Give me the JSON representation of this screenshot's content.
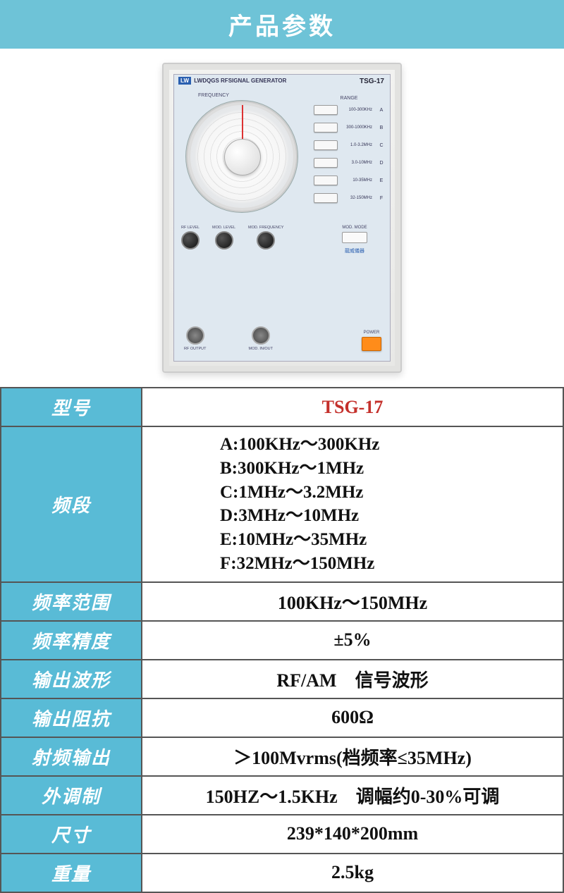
{
  "header": {
    "title": "产品参数"
  },
  "device": {
    "brand_tag": "LW",
    "brand_text": "LWDQGS",
    "title": "RFSIGNAL GENERATOR",
    "model": "TSG-17",
    "frequency_label": "FREQUENCY",
    "range_label": "RANGE",
    "ranges": [
      {
        "letter": "A",
        "text": "100-300KHz"
      },
      {
        "letter": "B",
        "text": "300-1000KHz"
      },
      {
        "letter": "C",
        "text": "1.0-3.2MHz"
      },
      {
        "letter": "D",
        "text": "3.0-10MHz"
      },
      {
        "letter": "E",
        "text": "10-35MHz"
      },
      {
        "letter": "F",
        "text": "32-150MHz"
      }
    ],
    "knobs": {
      "rf_level": "RF LEVEL",
      "mod_level": "MOD.\nLEVEL",
      "mod_freq": "MOD.\nFREQUENCY"
    },
    "mod_mode_label": "MOD. MODE",
    "brand_cn": "龍威儀器",
    "rf_output_label": "RF OUTPUT",
    "mod_inout_label": "MOD. IN/OUT",
    "power_label": "POWER"
  },
  "specs": {
    "rows": [
      {
        "label": "型号",
        "value": "TSG-17",
        "is_model": true
      },
      {
        "label": "频段",
        "value_lines": [
          "A:100KHz～300KHz",
          "B:300KHz～1MHz",
          "C:1MHz～3.2MHz",
          "D:3MHz～10MHz",
          "E:10MHz～35MHz",
          "F:32MHz～150MHz"
        ]
      },
      {
        "label": "频率范围",
        "value": "100KHz～150MHz"
      },
      {
        "label": "频率精度",
        "value": "±5%"
      },
      {
        "label": "输出波形",
        "value": "RF/AM　信号波形"
      },
      {
        "label": "输出阻抗",
        "value": "600Ω"
      },
      {
        "label": "射频输出",
        "value": "＞100Mvrms(档频率≤35MHz)"
      },
      {
        "label": "外调制",
        "value": "150HZ～1.5KHz　调幅约0-30%可调"
      },
      {
        "label": "尺寸",
        "value": "239*140*200mm"
      },
      {
        "label": "重量",
        "value": "2.5kg"
      }
    ]
  },
  "colors": {
    "header_bg": "#6ec3d7",
    "label_bg": "#59bbd6",
    "model_color": "#c4302b",
    "border": "#555"
  }
}
